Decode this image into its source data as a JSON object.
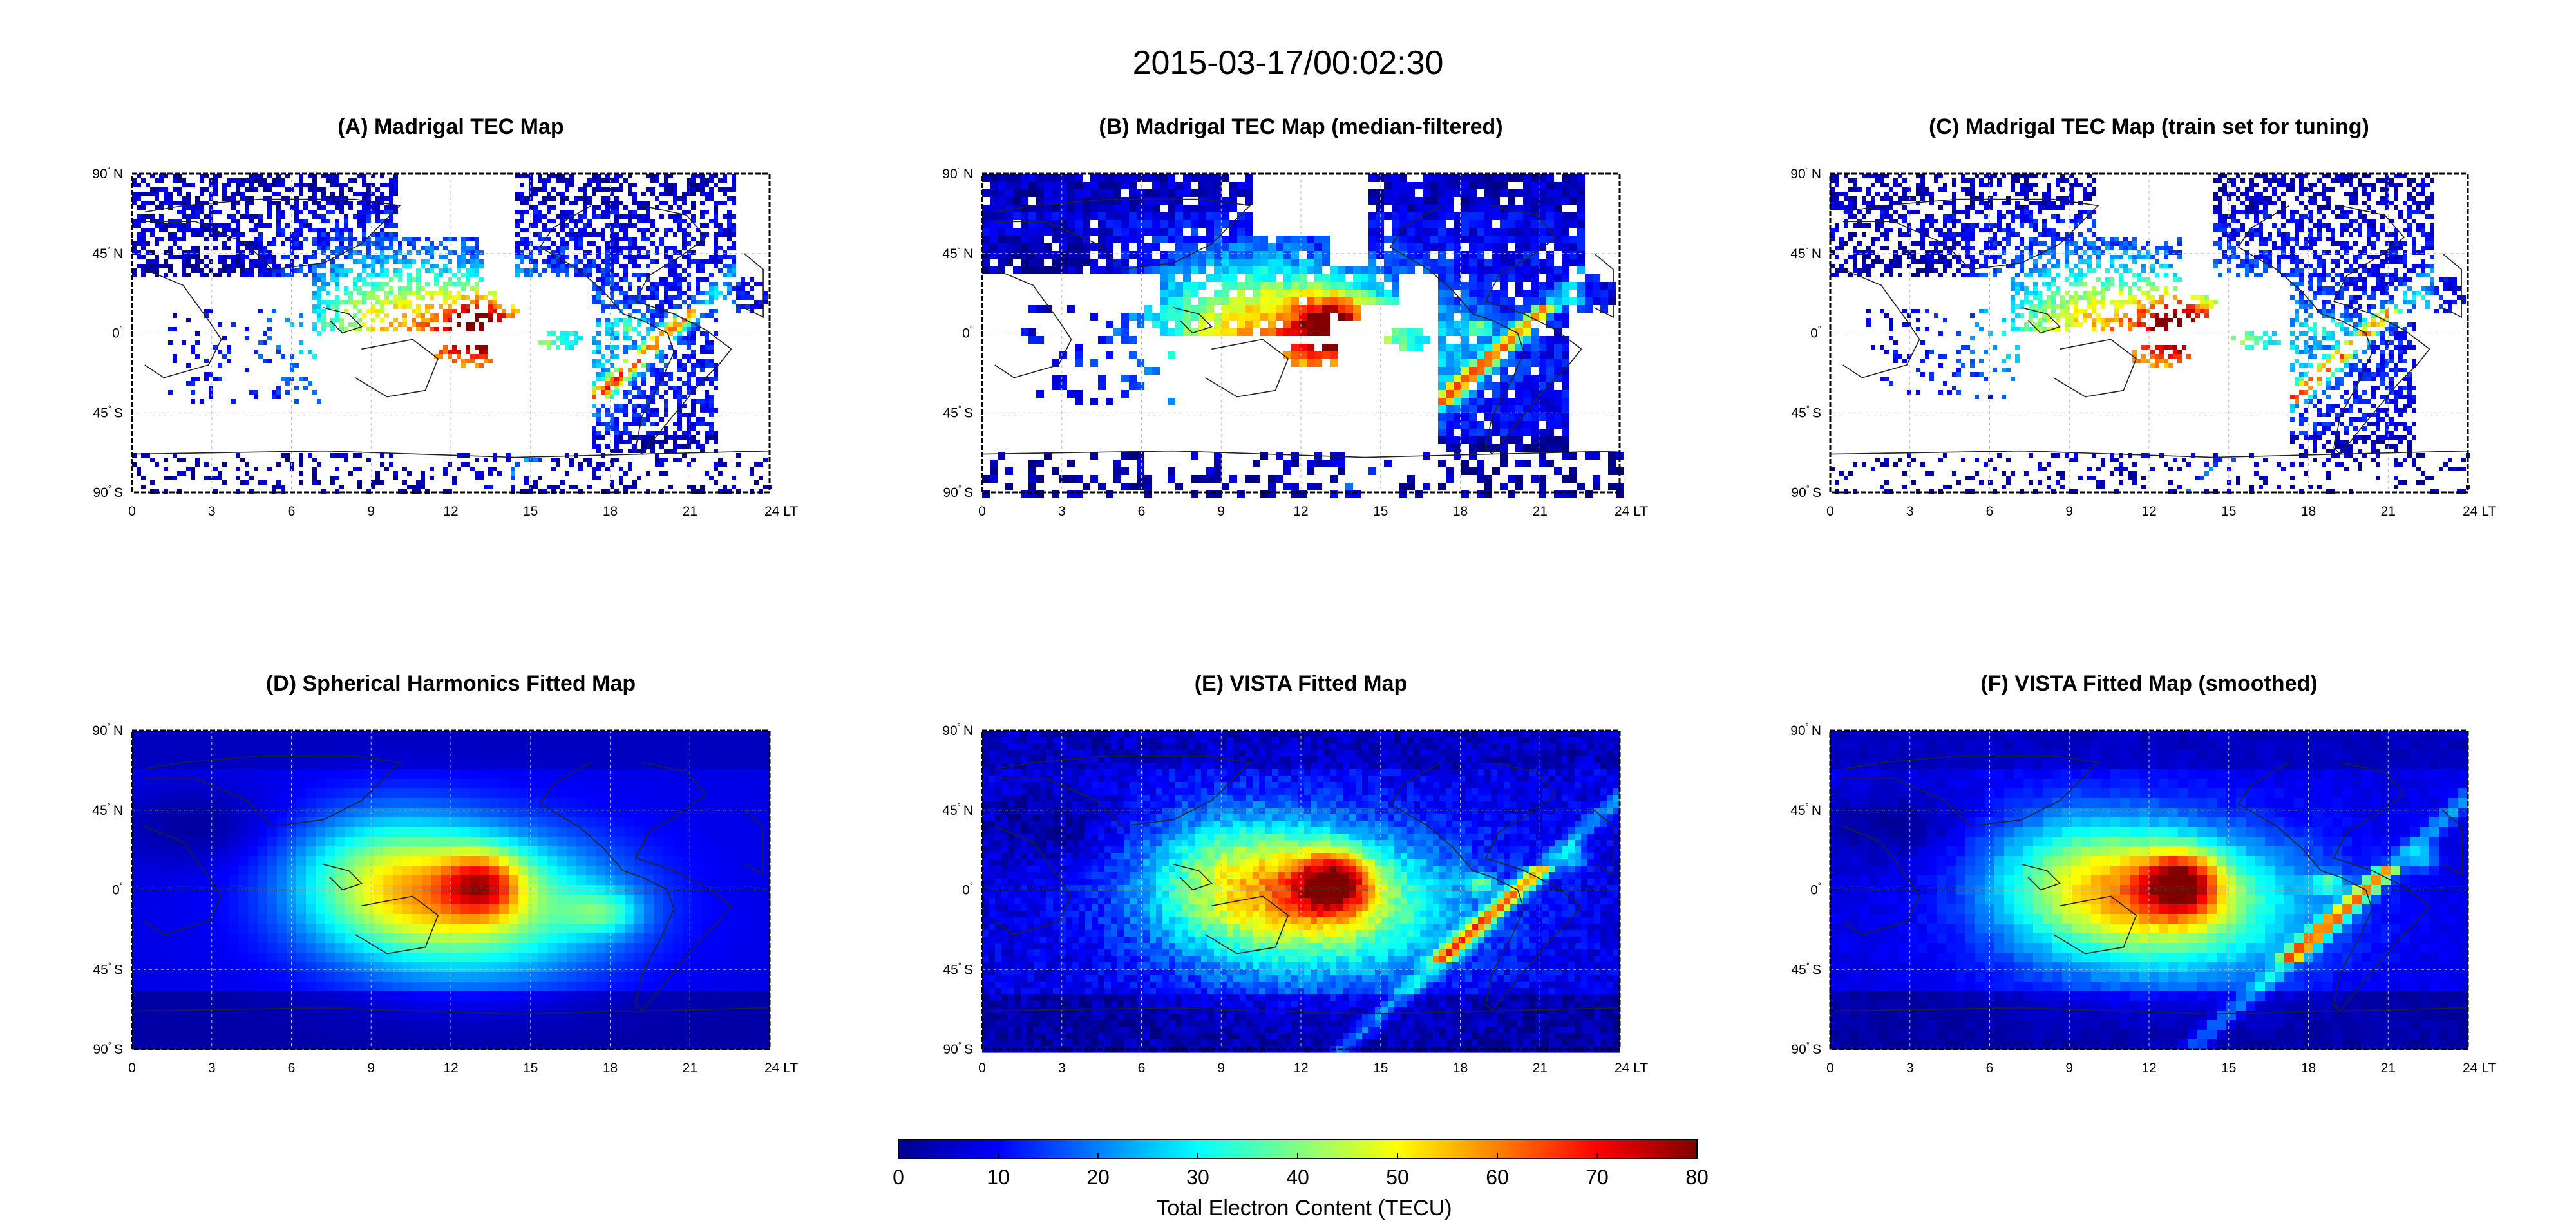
{
  "title": "2015-03-17/00:02:30",
  "panels": [
    {
      "id": "A",
      "title": "(A) Madrigal TEC Map",
      "kind": "sparse"
    },
    {
      "id": "B",
      "title": "(B) Madrigal TEC Map (median-filtered)",
      "kind": "filtered"
    },
    {
      "id": "C",
      "title": "(C) Madrigal TEC Map (train set for tuning)",
      "kind": "train"
    },
    {
      "id": "D",
      "title": "(D) Spherical Harmonics Fitted Map",
      "kind": "smooth"
    },
    {
      "id": "E",
      "title": "(E) VISTA Fitted Map",
      "kind": "vista"
    },
    {
      "id": "F",
      "title": "(F) VISTA Fitted Map (smoothed)",
      "kind": "vista-smooth"
    }
  ],
  "axes": {
    "x_ticks": [
      "0",
      "3",
      "6",
      "9",
      "12",
      "15",
      "18",
      "21",
      "24 LT"
    ],
    "y_ticks": [
      {
        "deg": "90",
        "hem": "N"
      },
      {
        "deg": "45",
        "hem": "N"
      },
      {
        "deg": "0",
        "hem": ""
      },
      {
        "deg": "45",
        "hem": "S"
      },
      {
        "deg": "90",
        "hem": "S"
      }
    ],
    "degree_symbol": "°"
  },
  "colorbar": {
    "label": "Total Electron Content (TECU)",
    "ticks": [
      "0",
      "10",
      "20",
      "30",
      "40",
      "50",
      "60",
      "70",
      "80"
    ],
    "min": 0,
    "max": 80,
    "colormap": "jet",
    "colors": [
      "#00008f",
      "#0000ff",
      "#0080ff",
      "#00ffff",
      "#80ff80",
      "#ffff00",
      "#ff8000",
      "#ff0000",
      "#800000"
    ]
  }
}
